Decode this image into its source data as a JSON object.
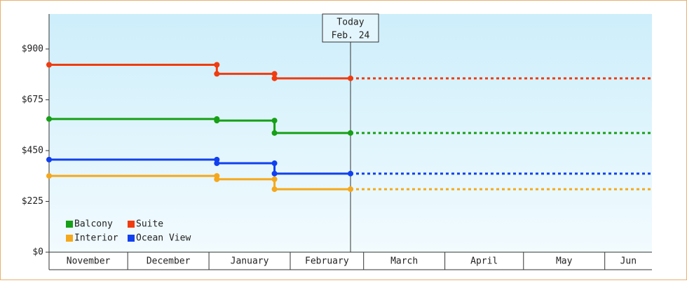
{
  "chart_data": {
    "type": "step-line",
    "x": [
      0,
      64,
      64,
      86,
      86,
      115
    ],
    "series": [
      {
        "name": "Balcony",
        "color": "#16a016",
        "values": [
          590,
          590,
          583,
          583,
          528,
          528
        ]
      },
      {
        "name": "Suite",
        "color": "#f03c10",
        "values": [
          830,
          830,
          790,
          790,
          770,
          770
        ]
      },
      {
        "name": "Interior",
        "color": "#f5a81c",
        "values": [
          338,
          338,
          323,
          323,
          279,
          279
        ]
      },
      {
        "name": "Ocean View",
        "color": "#1040f0",
        "values": [
          410,
          410,
          394,
          394,
          348,
          348
        ]
      }
    ],
    "xlim": [
      0,
      230
    ],
    "xticks": [
      {
        "value": 0,
        "label": "November"
      },
      {
        "value": 30,
        "label": "December"
      },
      {
        "value": 61,
        "label": "January"
      },
      {
        "value": 92,
        "label": "February"
      },
      {
        "value": 120,
        "label": "March"
      },
      {
        "value": 151,
        "label": "April"
      },
      {
        "value": 181,
        "label": "May"
      },
      {
        "value": 212,
        "label": "Jun"
      }
    ],
    "ylim": [
      0,
      1055
    ],
    "yticks": [
      {
        "value": 0,
        "label": "$0"
      },
      {
        "value": 225,
        "label": "$225"
      },
      {
        "value": 450,
        "label": "$450"
      },
      {
        "value": 675,
        "label": "$675"
      },
      {
        "value": 900,
        "label": "$900"
      }
    ],
    "annotation": {
      "x": 115,
      "lines": [
        "Today",
        "Feb. 24"
      ]
    },
    "forecast_dashed": true
  }
}
